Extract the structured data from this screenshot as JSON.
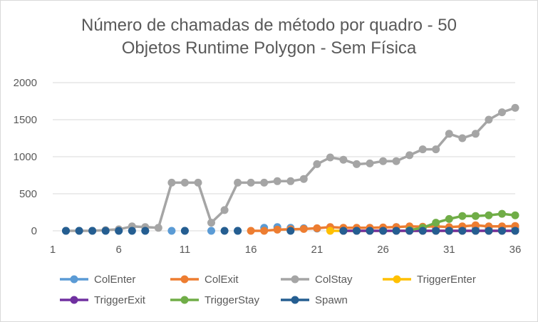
{
  "chart_data": {
    "type": "line",
    "title_lines": [
      "Número de chamadas de método por quadro - 50",
      "Objetos Runtime Polygon - Sem Física"
    ],
    "xlabel": "",
    "ylabel": "",
    "x": [
      1,
      2,
      3,
      4,
      5,
      6,
      7,
      8,
      9,
      10,
      11,
      12,
      13,
      14,
      15,
      16,
      17,
      18,
      19,
      20,
      21,
      22,
      23,
      24,
      25,
      26,
      27,
      28,
      29,
      30,
      31,
      32,
      33,
      34,
      35,
      36
    ],
    "x_tick_labels": [
      "1",
      "6",
      "11",
      "16",
      "21",
      "26",
      "31",
      "36"
    ],
    "x_tick_values": [
      1,
      6,
      11,
      16,
      21,
      26,
      31,
      36
    ],
    "y_tick_labels": [
      "0",
      "500",
      "1000",
      "1500",
      "2000"
    ],
    "y_tick_values": [
      0,
      500,
      1000,
      1500,
      2000
    ],
    "ylim": [
      0,
      2000
    ],
    "xlim": [
      1,
      36
    ],
    "grid": "horizontal",
    "legend_position": "bottom",
    "series": [
      {
        "name": "ColEnter",
        "color": "#5b9bd5",
        "connected": false,
        "points": [
          [
            2,
            0
          ],
          [
            3,
            0
          ],
          [
            4,
            0
          ],
          [
            5,
            0
          ],
          [
            6,
            0
          ],
          [
            7,
            0
          ],
          [
            8,
            0
          ],
          [
            10,
            0
          ],
          [
            11,
            0
          ],
          [
            13,
            0
          ],
          [
            15,
            0
          ],
          [
            17,
            40
          ],
          [
            18,
            50
          ],
          [
            19,
            40
          ],
          [
            20,
            35
          ],
          [
            21,
            30
          ],
          [
            22,
            30
          ],
          [
            23,
            30
          ],
          [
            24,
            30
          ],
          [
            25,
            30
          ],
          [
            26,
            30
          ],
          [
            27,
            50
          ],
          [
            28,
            30
          ],
          [
            29,
            30
          ],
          [
            30,
            30
          ],
          [
            31,
            30
          ],
          [
            32,
            30
          ],
          [
            33,
            30
          ],
          [
            34,
            30
          ],
          [
            35,
            30
          ],
          [
            36,
            30
          ]
        ]
      },
      {
        "name": "ColExit",
        "color": "#ed7d31",
        "connected": true,
        "points": [
          [
            16,
            0
          ],
          [
            17,
            0
          ],
          [
            18,
            15
          ],
          [
            19,
            20
          ],
          [
            20,
            25
          ],
          [
            21,
            35
          ],
          [
            22,
            50
          ],
          [
            23,
            40
          ],
          [
            24,
            40
          ],
          [
            25,
            40
          ],
          [
            26,
            45
          ],
          [
            27,
            50
          ],
          [
            28,
            60
          ],
          [
            29,
            55
          ],
          [
            30,
            60
          ],
          [
            31,
            50
          ],
          [
            32,
            60
          ],
          [
            33,
            75
          ],
          [
            34,
            60
          ],
          [
            35,
            60
          ],
          [
            36,
            65
          ]
        ]
      },
      {
        "name": "ColStay",
        "color": "#a5a5a5",
        "connected": true,
        "points": [
          [
            2,
            0
          ],
          [
            3,
            0
          ],
          [
            4,
            0
          ],
          [
            5,
            10
          ],
          [
            6,
            20
          ],
          [
            7,
            60
          ],
          [
            8,
            50
          ],
          [
            9,
            40
          ],
          [
            10,
            650
          ],
          [
            11,
            650
          ],
          [
            12,
            650
          ],
          [
            13,
            110
          ],
          [
            14,
            280
          ],
          [
            15,
            650
          ],
          [
            16,
            650
          ],
          [
            17,
            650
          ],
          [
            18,
            670
          ],
          [
            19,
            670
          ],
          [
            20,
            700
          ],
          [
            21,
            900
          ],
          [
            22,
            990
          ],
          [
            23,
            960
          ],
          [
            24,
            900
          ],
          [
            25,
            910
          ],
          [
            26,
            940
          ],
          [
            27,
            940
          ],
          [
            28,
            1020
          ],
          [
            29,
            1100
          ],
          [
            30,
            1100
          ],
          [
            31,
            1310
          ],
          [
            32,
            1250
          ],
          [
            33,
            1310
          ],
          [
            34,
            1500
          ],
          [
            35,
            1600
          ],
          [
            36,
            1660
          ]
        ]
      },
      {
        "name": "TriggerEnter",
        "color": "#ffc000",
        "connected": true,
        "points": [
          [
            22,
            0
          ],
          [
            23,
            0
          ],
          [
            24,
            0
          ],
          [
            25,
            0
          ],
          [
            26,
            0
          ],
          [
            27,
            0
          ],
          [
            28,
            0
          ],
          [
            29,
            0
          ],
          [
            30,
            0
          ],
          [
            31,
            0
          ],
          [
            32,
            0
          ],
          [
            33,
            0
          ],
          [
            34,
            0
          ],
          [
            35,
            0
          ],
          [
            36,
            0
          ]
        ]
      },
      {
        "name": "TriggerExit",
        "color": "#7030a0",
        "connected": true,
        "points": [
          [
            23,
            0
          ],
          [
            24,
            0
          ],
          [
            25,
            0
          ],
          [
            26,
            0
          ],
          [
            27,
            0
          ],
          [
            28,
            0
          ],
          [
            29,
            0
          ],
          [
            30,
            0
          ],
          [
            31,
            0
          ],
          [
            32,
            0
          ],
          [
            33,
            0
          ],
          [
            34,
            0
          ],
          [
            35,
            0
          ],
          [
            36,
            0
          ]
        ]
      },
      {
        "name": "TriggerStay",
        "color": "#70ad47",
        "connected": true,
        "points": [
          [
            28,
            10
          ],
          [
            29,
            40
          ],
          [
            30,
            110
          ],
          [
            31,
            160
          ],
          [
            32,
            200
          ],
          [
            33,
            200
          ],
          [
            34,
            210
          ],
          [
            35,
            230
          ],
          [
            36,
            210
          ]
        ]
      },
      {
        "name": "Spawn",
        "color": "#255e91",
        "connected": false,
        "points": [
          [
            2,
            0
          ],
          [
            3,
            0
          ],
          [
            4,
            0
          ],
          [
            5,
            0
          ],
          [
            6,
            0
          ],
          [
            7,
            0
          ],
          [
            8,
            0
          ],
          [
            11,
            0
          ],
          [
            14,
            0
          ],
          [
            15,
            0
          ],
          [
            19,
            0
          ],
          [
            23,
            0
          ],
          [
            24,
            0
          ],
          [
            25,
            0
          ],
          [
            26,
            0
          ],
          [
            27,
            0
          ],
          [
            28,
            0
          ],
          [
            29,
            0
          ],
          [
            30,
            0
          ],
          [
            31,
            0
          ],
          [
            32,
            0
          ],
          [
            33,
            0
          ],
          [
            34,
            0
          ],
          [
            35,
            0
          ],
          [
            36,
            0
          ]
        ]
      }
    ]
  }
}
